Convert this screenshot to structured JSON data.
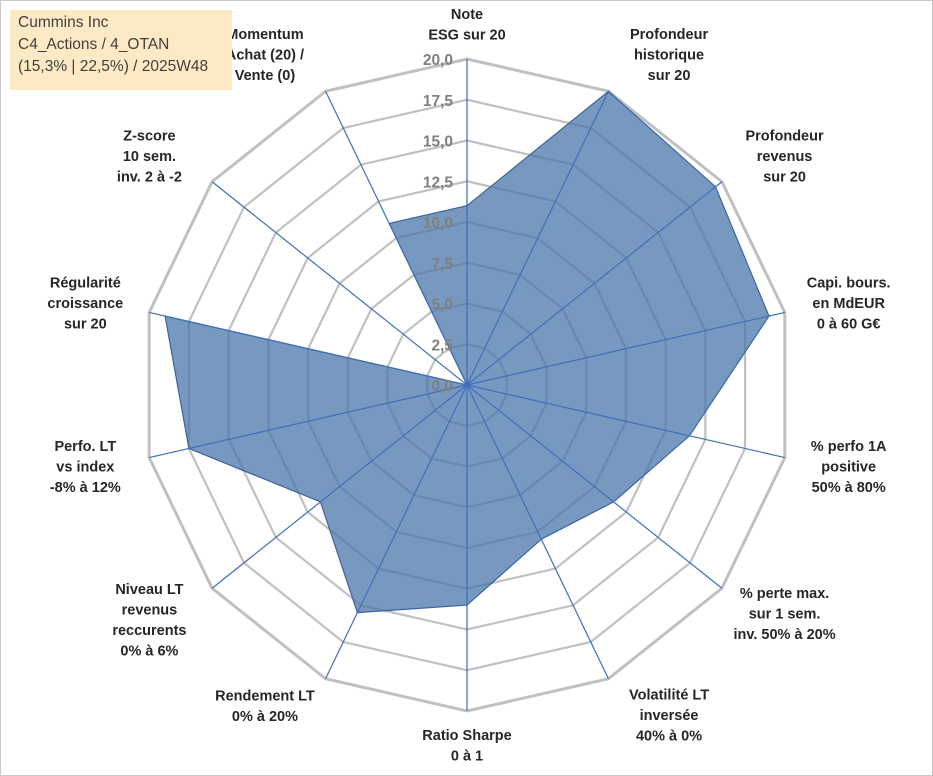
{
  "header": {
    "company": "Cummins Inc",
    "portfolio": "C4_Actions / 4_OTAN",
    "stats": "(15,3% | 22,5%) / 2025W48"
  },
  "chart_data": {
    "type": "radar",
    "rmin": 0,
    "rmax": 20,
    "tick_step": 2.5,
    "tick_labels": [
      "0,0",
      "2,5",
      "5,0",
      "7,5",
      "10,0",
      "12,5",
      "15,0",
      "17,5",
      "20,0"
    ],
    "axes": [
      {
        "lines": [
          "Note",
          "ESG sur 20"
        ]
      },
      {
        "lines": [
          "Profondeur",
          "historique",
          "sur 20"
        ]
      },
      {
        "lines": [
          "Profondeur",
          "revenus",
          "sur 20"
        ]
      },
      {
        "lines": [
          "Capi. bours.",
          "en MdEUR",
          "0 à 60 G€"
        ]
      },
      {
        "lines": [
          "% perfo 1A",
          "positive",
          "50% à 80%"
        ]
      },
      {
        "lines": [
          "% perte max.",
          "sur 1 sem.",
          "inv. 50% à 20%"
        ]
      },
      {
        "lines": [
          "Volatilité LT",
          "inversée",
          "40% à 0%"
        ]
      },
      {
        "lines": [
          "Ratio Sharpe",
          "0 à 1"
        ]
      },
      {
        "lines": [
          "Rendement LT",
          "0% à 20%"
        ]
      },
      {
        "lines": [
          "Niveau LT",
          "revenus",
          "reccurents",
          "0% à 6%"
        ]
      },
      {
        "lines": [
          "Perfo. LT",
          "vs index",
          "-8% à 12%"
        ]
      },
      {
        "lines": [
          "Régularité",
          "croissance",
          "sur 20"
        ]
      },
      {
        "lines": [
          "Z-score",
          "10 sem.",
          "inv. 2 à -2"
        ]
      },
      {
        "lines": [
          "Momentum",
          "Achat (20) /",
          "Vente (0)"
        ]
      }
    ],
    "series": [
      {
        "name": "Cummins Inc",
        "values": [
          11.0,
          20.0,
          19.5,
          19.0,
          14.0,
          11.5,
          10.5,
          13.5,
          15.5,
          11.5,
          17.5,
          19.0,
          0.0,
          11.0
        ],
        "color": "#4a75aa"
      }
    ],
    "colors": {
      "grid": "#c0c0c0",
      "spoke": "#3f6fb9",
      "fill": "#4a75aa"
    }
  }
}
